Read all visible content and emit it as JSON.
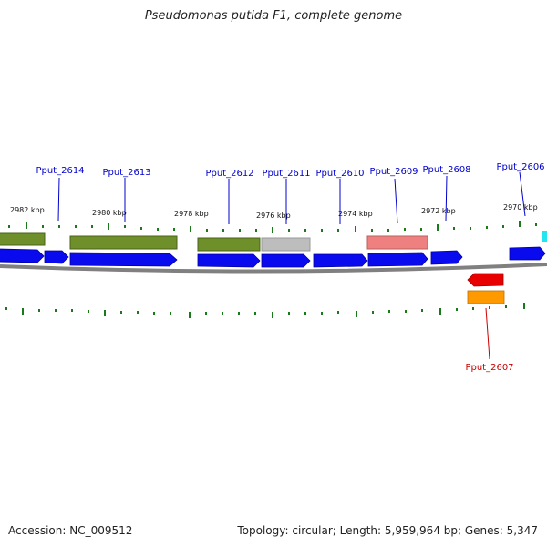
{
  "title": "Pseudomonas putida F1, complete genome",
  "accession": "Accession: NC_009512",
  "summary": "Topology: circular; Length: 5,959,964 bp; Genes: 5,347",
  "colors": {
    "forward_gene": "#0a0aee",
    "reverse_gene_red": "#e80000",
    "reverse_gene_orange": "#ff9900",
    "feature_olive": "#6f8f2a",
    "feature_gray": "#bdbdbd",
    "feature_pink": "#ee8080",
    "feature_cyan": "#22e5f0",
    "backbone": "#808080",
    "ticks": "#1a7a1a",
    "label_blue": "#0000cc",
    "label_red": "#cc0000"
  },
  "scale_labels": [
    "2982 kbp",
    "2980 kbp",
    "2978 kbp",
    "2976 kbp",
    "2974 kbp",
    "2972 kbp",
    "2970 kbp"
  ],
  "gene_labels": [
    {
      "name": "Pput_2614",
      "strand": "forward"
    },
    {
      "name": "Pput_2613",
      "strand": "forward"
    },
    {
      "name": "Pput_2612",
      "strand": "forward"
    },
    {
      "name": "Pput_2611",
      "strand": "forward"
    },
    {
      "name": "Pput_2610",
      "strand": "forward"
    },
    {
      "name": "Pput_2609",
      "strand": "forward"
    },
    {
      "name": "Pput_2608",
      "strand": "forward"
    },
    {
      "name": "Pput_2606",
      "strand": "forward"
    },
    {
      "name": "Pput_2607",
      "strand": "reverse"
    }
  ]
}
